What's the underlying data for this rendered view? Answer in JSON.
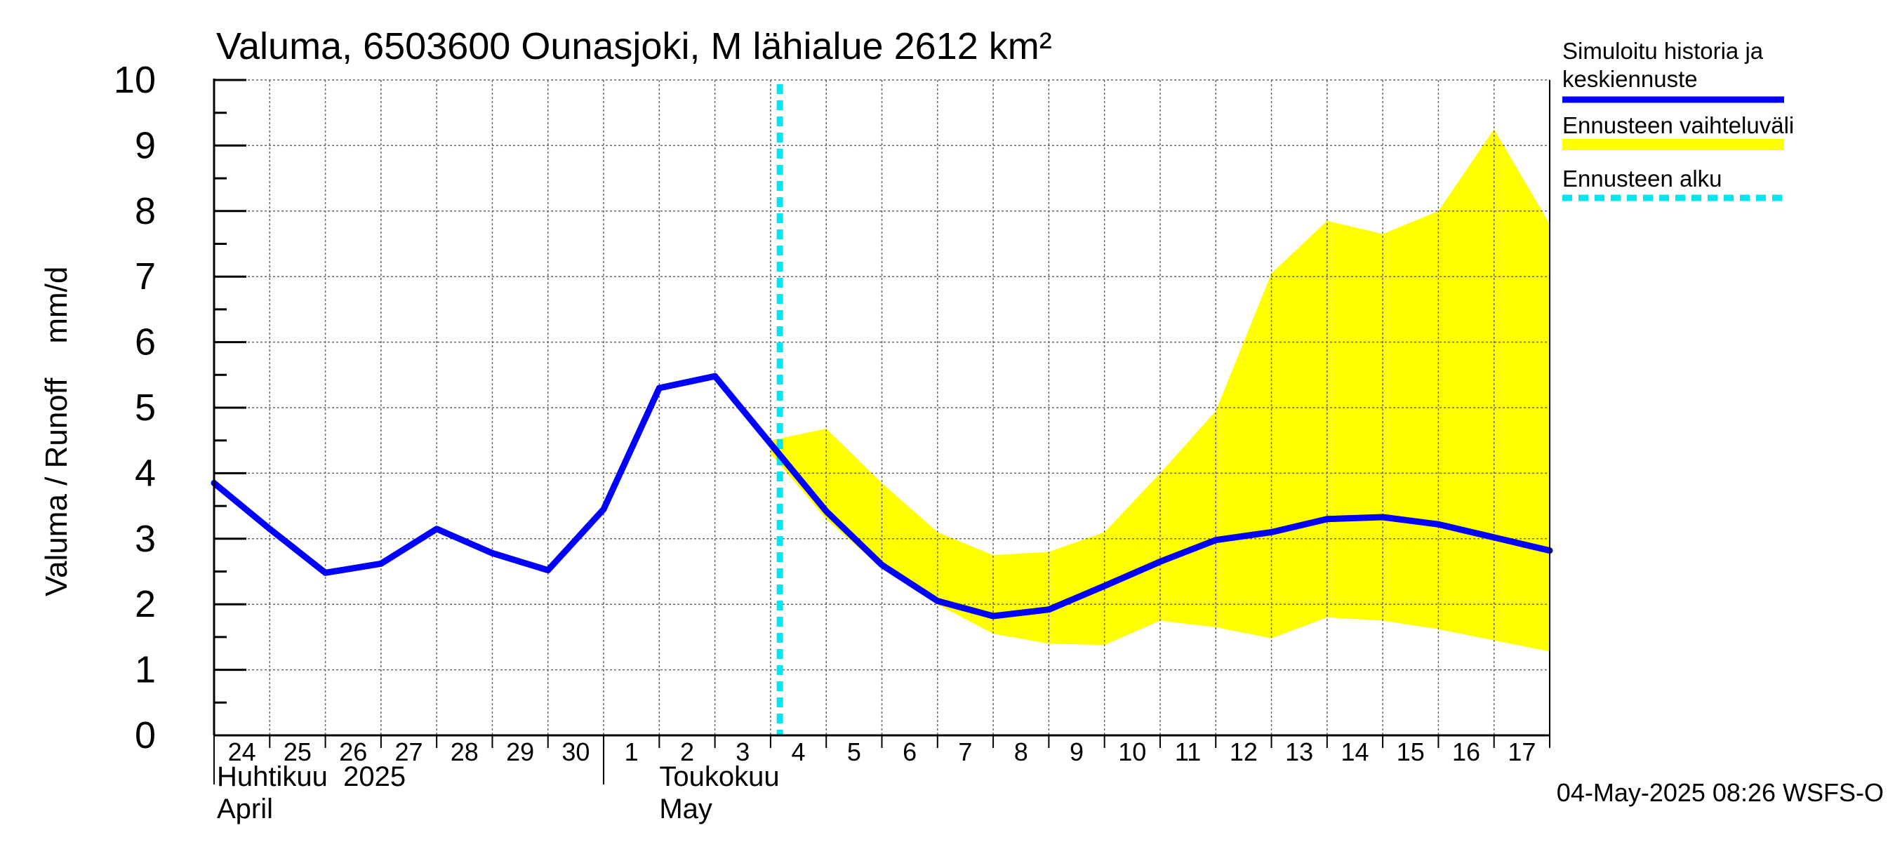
{
  "chart_data": {
    "type": "line",
    "title": "Valuma, 6503600 Ounasjoki, M lähialue 2612 km²",
    "ylabel": "Valuma / Runoff    mm/d",
    "ylim": [
      0,
      10
    ],
    "yticks": [
      0,
      1,
      2,
      3,
      4,
      5,
      6,
      7,
      8,
      9,
      10
    ],
    "grid": true,
    "legend_position": "right",
    "x_day_labels": [
      "24",
      "25",
      "26",
      "27",
      "28",
      "29",
      "30",
      "1",
      "2",
      "3",
      "4",
      "5",
      "6",
      "7",
      "8",
      "9",
      "10",
      "11",
      "12",
      "13",
      "14",
      "15",
      "16",
      "17"
    ],
    "month_labels": [
      {
        "line1": "Huhtikuu  2025",
        "line2": "April"
      },
      {
        "line1": "Toukokuu",
        "line2": "May"
      }
    ],
    "x_start": "2025-04-24",
    "x_end": "2025-05-18",
    "forecast_start": "2025-05-04T04:00",
    "series": [
      {
        "name": "Simuloitu historia ja keskiennuste",
        "color": "#0000ff",
        "x": [
          "2025-04-24",
          "2025-04-25",
          "2025-04-26",
          "2025-04-27",
          "2025-04-28",
          "2025-04-29",
          "2025-04-30",
          "2025-05-01",
          "2025-05-02",
          "2025-05-03",
          "2025-05-04",
          "2025-05-05",
          "2025-05-06",
          "2025-05-07",
          "2025-05-08",
          "2025-05-09",
          "2025-05-10",
          "2025-05-11",
          "2025-05-12",
          "2025-05-13",
          "2025-05-14",
          "2025-05-15",
          "2025-05-16",
          "2025-05-17",
          "2025-05-18"
        ],
        "values": [
          3.85,
          3.15,
          2.48,
          2.62,
          3.15,
          2.78,
          2.52,
          3.45,
          5.3,
          5.48,
          4.45,
          3.42,
          2.6,
          2.05,
          1.82,
          1.92,
          2.28,
          2.65,
          2.98,
          3.1,
          3.3,
          3.33,
          3.22,
          3.02,
          2.82
        ]
      },
      {
        "name": "Ennusteen vaihteluväli",
        "color": "#ffff00",
        "x": [
          "2025-05-04",
          "2025-05-05",
          "2025-05-06",
          "2025-05-07",
          "2025-05-08",
          "2025-05-09",
          "2025-05-10",
          "2025-05-11",
          "2025-05-12",
          "2025-05-13",
          "2025-05-14",
          "2025-05-15",
          "2025-05-16",
          "2025-05-17",
          "2025-05-18"
        ],
        "upper": [
          4.5,
          4.68,
          3.85,
          3.1,
          2.75,
          2.8,
          3.1,
          4.0,
          4.95,
          7.05,
          7.85,
          7.65,
          8.0,
          9.25,
          7.8
        ],
        "lower": [
          4.3,
          3.3,
          2.55,
          2.0,
          1.55,
          1.4,
          1.38,
          1.75,
          1.65,
          1.48,
          1.8,
          1.75,
          1.62,
          1.45,
          1.28
        ]
      },
      {
        "name": "Ennusteen alku",
        "color": "#00e5ee"
      }
    ],
    "legend": [
      {
        "line1": "Simuloitu historia ja",
        "line2": "keskiennuste",
        "color": "#0000ff",
        "style": "solid"
      },
      {
        "line1": "Ennusteen vaihteluväli",
        "line2": "",
        "color": "#ffff00",
        "style": "solid"
      },
      {
        "line1": "Ennusteen alku",
        "line2": "",
        "color": "#00e5ee",
        "style": "dashed"
      }
    ]
  },
  "footer": {
    "timestamp": "04-May-2025 08:26 WSFS-O"
  }
}
